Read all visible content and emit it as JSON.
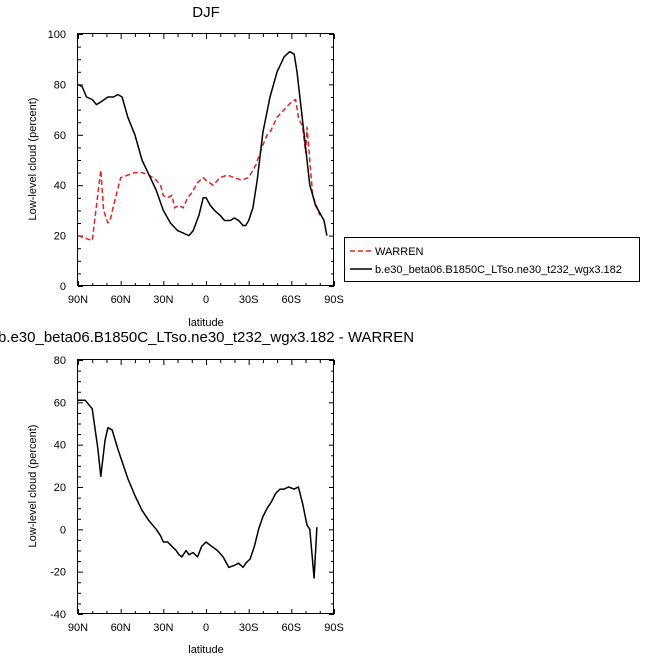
{
  "chart_data": [
    {
      "type": "line",
      "title": "DJF",
      "xlabel": "latitude",
      "ylabel": "Low-level cloud (percent)",
      "xlim": [
        90,
        -90
      ],
      "ylim": [
        0,
        100
      ],
      "x_ticks": [
        90,
        60,
        30,
        0,
        -30,
        -60,
        -90
      ],
      "x_tick_labels": [
        "90N",
        "60N",
        "30N",
        "0",
        "30S",
        "60S",
        "90S"
      ],
      "y_ticks": [
        0,
        20,
        40,
        60,
        80,
        100
      ],
      "y_tick_labels": [
        "0",
        "20",
        "40",
        "60",
        "80",
        "100"
      ],
      "legend": "right",
      "series": [
        {
          "name": "WARREN",
          "color": "#e8201f",
          "dash": "dashed",
          "x": [
            90,
            80,
            74,
            72,
            69,
            67,
            65,
            60,
            55,
            50,
            45,
            40,
            35,
            32,
            30,
            27,
            24,
            22,
            19,
            16,
            13,
            10,
            6,
            2,
            0,
            -5,
            -10,
            -15,
            -20,
            -25,
            -30,
            -35,
            -40,
            -43,
            -45,
            -50,
            -55,
            -60,
            -63,
            -65,
            -68,
            -70,
            -71,
            -75,
            -80
          ],
          "y": [
            20,
            18,
            46,
            30,
            25,
            27,
            32,
            43,
            44,
            45,
            45,
            44,
            42,
            40,
            36,
            35,
            36,
            31,
            32,
            31,
            35,
            37,
            41,
            43,
            42,
            40,
            43,
            44,
            43,
            42,
            43,
            48,
            56,
            60,
            61,
            67,
            70,
            73,
            74,
            67,
            63,
            53,
            63,
            36,
            28
          ]
        },
        {
          "name": "b.e30_beta06.B1850C_LTso.ne30_t232_wgx3.182",
          "color": "#000000",
          "dash": "solid",
          "x": [
            90,
            87,
            84,
            80,
            77,
            74,
            69,
            65,
            62,
            59,
            55,
            50,
            45,
            40,
            35,
            30,
            25,
            20,
            16,
            12,
            9,
            5,
            2,
            0,
            -3,
            -6,
            -10,
            -13,
            -17,
            -20,
            -23,
            -26,
            -28,
            -30,
            -33,
            -36,
            -40,
            -45,
            -50,
            -55,
            -59,
            -62,
            -64,
            -67,
            -70,
            -73,
            -75,
            -77,
            -80,
            -83,
            -85
          ],
          "y": [
            80,
            79,
            75,
            74,
            72,
            73,
            75,
            75,
            76,
            75,
            67,
            60,
            50,
            44,
            38,
            30,
            25,
            22,
            21,
            20,
            22,
            28,
            35,
            35,
            32,
            30,
            28,
            26,
            26,
            27,
            26,
            24,
            24,
            26,
            31,
            42,
            61,
            75,
            85,
            91,
            93,
            92,
            85,
            70,
            55,
            40,
            36,
            32,
            29,
            26,
            20
          ]
        }
      ]
    },
    {
      "type": "line",
      "title": "b.e30_beta06.B1850C_LTso.ne30_t232_wgx3.182 - WARREN",
      "xlabel": "latitude",
      "ylabel": "Low-level cloud (percent)",
      "xlim": [
        90,
        -90
      ],
      "ylim": [
        -40,
        80
      ],
      "x_ticks": [
        90,
        60,
        30,
        0,
        -30,
        -60,
        -90
      ],
      "x_tick_labels": [
        "90N",
        "60N",
        "30N",
        "0",
        "30S",
        "60S",
        "90S"
      ],
      "y_ticks": [
        -40,
        -20,
        0,
        20,
        40,
        60,
        80
      ],
      "y_tick_labels": [
        "-40",
        "-20",
        "0",
        "20",
        "40",
        "60",
        "80"
      ],
      "legend": "none",
      "series": [
        {
          "color": "#000000",
          "dash": "solid",
          "x": [
            90,
            85,
            80,
            76,
            74,
            71,
            69,
            66,
            62,
            58,
            55,
            50,
            45,
            40,
            35,
            32,
            30,
            27,
            24,
            21,
            19,
            17,
            14,
            12,
            9,
            6,
            3,
            0,
            -4,
            -8,
            -12,
            -16,
            -20,
            -23,
            -26,
            -28,
            -31,
            -34,
            -37,
            -40,
            -43,
            -46,
            -49,
            -52,
            -55,
            -58,
            -62,
            -65,
            -68,
            -71,
            -73,
            -76,
            -78
          ],
          "y": [
            61,
            61,
            57,
            38,
            25,
            42,
            48,
            47,
            38,
            30,
            24,
            16,
            9,
            4,
            0,
            -3,
            -6,
            -6,
            -8,
            -10,
            -12,
            -13,
            -10,
            -12,
            -11,
            -13,
            -8,
            -6,
            -8,
            -10,
            -13,
            -18,
            -17,
            -16,
            -18,
            -16,
            -14,
            -8,
            0,
            6,
            10,
            13,
            17,
            19,
            19,
            20,
            19,
            20,
            12,
            2,
            0,
            -23,
            1
          ]
        }
      ]
    }
  ]
}
